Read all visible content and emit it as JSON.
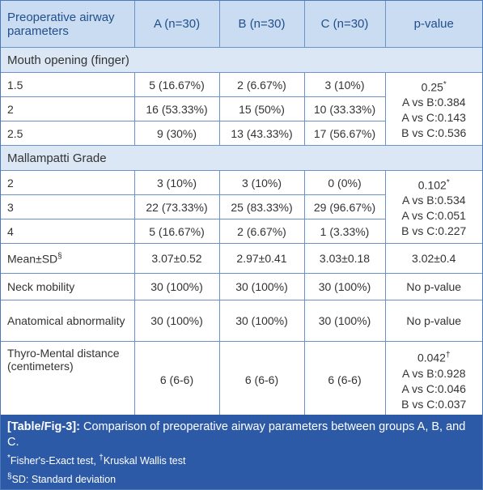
{
  "table": {
    "header": [
      "Preoperative airway parameters",
      "A (n=30)",
      "B (n=30)",
      "C (n=30)",
      "p-value"
    ],
    "sections": [
      {
        "title": "Mouth opening (finger)",
        "rows": [
          [
            "1.5",
            "5 (16.67%)",
            "2 (6.67%)",
            "3 (10%)"
          ],
          [
            "2",
            "16 (53.33%)",
            "15 (50%)",
            "10 (33.33%)"
          ],
          [
            "2.5",
            "9 (30%)",
            "13 (43.33%)",
            "17 (56.67%)"
          ]
        ],
        "p_value": {
          "main": "0.25",
          "mark": "*",
          "comparisons": [
            "A vs B:0.384",
            "A vs C:0.143",
            "B vs C:0.536"
          ]
        }
      },
      {
        "title": "Mallampatti Grade",
        "rows": [
          [
            "2",
            "3 (10%)",
            "3 (10%)",
            "0 (0%)"
          ],
          [
            "3",
            "22 (73.33%)",
            "25 (83.33%)",
            "29 (96.67%)"
          ],
          [
            "4",
            "5 (16.67%)",
            "2 (6.67%)",
            "1 (3.33%)"
          ]
        ],
        "p_value": {
          "main": "0.102",
          "mark": "*",
          "comparisons": [
            "A vs B:0.534",
            "A vs C:0.051",
            "B vs C:0.227"
          ]
        }
      }
    ],
    "rows": [
      {
        "label": "Mean±SD",
        "mark": "§",
        "cells": [
          "3.07±0.52",
          "2.97±0.41",
          "3.03±0.18"
        ],
        "p_value": "3.02±0.4"
      },
      {
        "label": "Neck mobility",
        "cells": [
          "30 (100%)",
          "30 (100%)",
          "30 (100%)"
        ],
        "p_value": "No p-value"
      },
      {
        "label": "Anatomical abnormality",
        "cells": [
          "30 (100%)",
          "30 (100%)",
          "30 (100%)"
        ],
        "p_value": "No p-value"
      },
      {
        "label": "Thyro-Mental distance (centimeters)",
        "cells": [
          "6 (6-6)",
          "6 (6-6)",
          "6 (6-6)"
        ],
        "p_value": {
          "main": "0.042",
          "mark": "†",
          "comparisons": [
            "A vs B:0.928",
            "A vs C:0.046",
            "B vs C:0.037"
          ]
        }
      }
    ]
  },
  "caption": {
    "label": "[Table/Fig-3]:",
    "text": "Comparison of preoperative airway parameters between groups A, B, and C.",
    "footnotes": [
      [
        {
          "mark": "*",
          "text": "Fisher's-Exact test, "
        },
        {
          "mark": "†",
          "text": "Kruskal Wallis test"
        }
      ],
      [
        {
          "mark": "§",
          "text": "SD: Standard deviation"
        }
      ]
    ]
  }
}
